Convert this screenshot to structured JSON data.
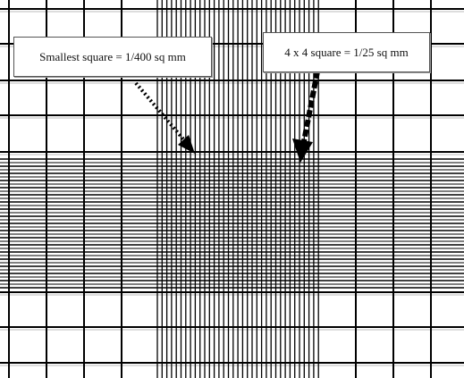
{
  "labels": {
    "smallest_square": "Smallest square = 1/400 sq mm",
    "four_by_four_square": "4 x 4 square = 1/25 sq mm"
  },
  "colors": {
    "grid_line": "#000000",
    "faint_line": "#bbbbbb",
    "background": "#ffffff",
    "label_border": "#555555"
  },
  "icons": {
    "arrow_left": "dotted-arrow-icon",
    "arrow_right": "dashed-arrow-icon"
  }
}
